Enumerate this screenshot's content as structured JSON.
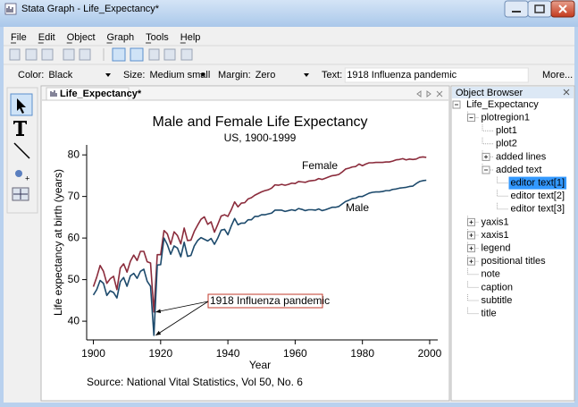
{
  "window": {
    "title": "Stata Graph - Life_Expectancy*"
  },
  "menu": [
    "File",
    "Edit",
    "Object",
    "Graph",
    "Tools",
    "Help"
  ],
  "properties": [
    {
      "label": "Color:",
      "value": "Black"
    },
    {
      "label": "Size:",
      "value": "Medium small"
    },
    {
      "label": "Margin:",
      "value": "Zero"
    },
    {
      "label": "Text:",
      "value": "1918 Influenza pandemic"
    }
  ],
  "more_button": "More...",
  "tab": {
    "title": "Life_Expectancy*"
  },
  "object_browser": {
    "title": "Object Browser",
    "items": [
      {
        "label": "Life_Expectancy",
        "level": 0,
        "expanded": true
      },
      {
        "label": "plotregion1",
        "level": 1,
        "expanded": true
      },
      {
        "label": "plot1",
        "level": 2
      },
      {
        "label": "plot2",
        "level": 2
      },
      {
        "label": "added lines",
        "level": 2,
        "expanded": false
      },
      {
        "label": "added text",
        "level": 2,
        "expanded": true
      },
      {
        "label": "editor text[1]",
        "level": 3,
        "selected": true
      },
      {
        "label": "editor text[2]",
        "level": 3
      },
      {
        "label": "editor text[3]",
        "level": 3
      },
      {
        "label": "yaxis1",
        "level": 1,
        "expanded": false
      },
      {
        "label": "xaxis1",
        "level": 1,
        "expanded": false
      },
      {
        "label": "legend",
        "level": 1,
        "expanded": false,
        "disabled": true
      },
      {
        "label": "positional titles",
        "level": 1,
        "expanded": false
      },
      {
        "label": "note",
        "level": 1
      },
      {
        "label": "caption",
        "level": 1
      },
      {
        "label": "subtitle",
        "level": 1
      },
      {
        "label": "title",
        "level": 1
      }
    ]
  },
  "chart_data": {
    "type": "line",
    "title": "Male and Female Life Expectancy",
    "subtitle": "US, 1900-1999",
    "x_label": "Year",
    "y_label": "Life expectancy at birth (years)",
    "note": "Source:  National Vital Statistics, Vol 50, No. 6",
    "x": [
      1900,
      1901,
      1902,
      1903,
      1904,
      1905,
      1906,
      1907,
      1908,
      1909,
      1910,
      1911,
      1912,
      1913,
      1914,
      1915,
      1916,
      1917,
      1918,
      1919,
      1920,
      1921,
      1922,
      1923,
      1924,
      1925,
      1926,
      1927,
      1928,
      1929,
      1930,
      1931,
      1932,
      1933,
      1934,
      1935,
      1936,
      1937,
      1938,
      1939,
      1940,
      1941,
      1942,
      1943,
      1944,
      1945,
      1946,
      1947,
      1948,
      1949,
      1950,
      1951,
      1952,
      1953,
      1954,
      1955,
      1956,
      1957,
      1958,
      1959,
      1960,
      1961,
      1962,
      1963,
      1964,
      1965,
      1966,
      1967,
      1968,
      1969,
      1970,
      1971,
      1972,
      1973,
      1974,
      1975,
      1976,
      1977,
      1978,
      1979,
      1980,
      1981,
      1982,
      1983,
      1984,
      1985,
      1986,
      1987,
      1988,
      1989,
      1990,
      1991,
      1992,
      1993,
      1994,
      1995,
      1996,
      1997,
      1998,
      1999
    ],
    "series": [
      {
        "name": "Female",
        "color": "#8b2c3c",
        "values": [
          48.3,
          50.6,
          53.4,
          52.0,
          49.1,
          50.2,
          50.8,
          47.6,
          52.8,
          53.8,
          51.8,
          54.4,
          55.9,
          54.6,
          56.8,
          56.8,
          54.3,
          54.0,
          42.2,
          56.0,
          56.0,
          61.8,
          61.0,
          58.5,
          61.5,
          60.6,
          58.6,
          62.4,
          59.4,
          59.5,
          61.6,
          63.1,
          64.5,
          65.1,
          63.3,
          63.9,
          61.4,
          63.3,
          65.3,
          65.6,
          65.2,
          66.8,
          68.7,
          67.5,
          68.4,
          68.5,
          69.4,
          69.7,
          70.3,
          70.7,
          71.1,
          71.4,
          71.6,
          72.0,
          72.8,
          72.7,
          72.9,
          72.7,
          72.9,
          73.2,
          73.1,
          73.6,
          73.5,
          73.4,
          73.7,
          73.8,
          73.9,
          74.3,
          74.1,
          74.4,
          74.7,
          75.0,
          75.1,
          75.3,
          75.9,
          76.6,
          76.8,
          77.1,
          77.2,
          77.8,
          77.4,
          77.8,
          78.1,
          78.1,
          78.2,
          78.2,
          78.2,
          78.3,
          78.3,
          78.5,
          78.8,
          78.9,
          79.1,
          78.8,
          79.0,
          78.9,
          79.0,
          79.4,
          79.5,
          79.4
        ]
      },
      {
        "name": "Male",
        "color": "#1d4a6c",
        "values": [
          46.3,
          47.6,
          49.8,
          49.1,
          46.2,
          47.3,
          46.9,
          45.6,
          49.5,
          50.5,
          48.4,
          50.9,
          51.5,
          50.3,
          52.0,
          52.5,
          49.6,
          48.4,
          36.6,
          53.5,
          53.6,
          60.0,
          58.4,
          56.1,
          58.1,
          57.6,
          55.5,
          59.0,
          55.6,
          55.8,
          58.1,
          59.4,
          60.1,
          59.7,
          59.3,
          59.9,
          58.5,
          60.0,
          61.9,
          62.1,
          60.8,
          62.9,
          64.7,
          63.2,
          63.6,
          63.6,
          64.4,
          64.4,
          65.2,
          65.2,
          65.6,
          65.6,
          65.8,
          66.0,
          66.7,
          66.7,
          66.7,
          66.4,
          66.6,
          66.8,
          66.6,
          67.1,
          66.9,
          66.6,
          66.8,
          66.8,
          66.7,
          67.0,
          66.6,
          66.8,
          67.1,
          67.4,
          67.4,
          67.6,
          68.2,
          68.8,
          69.1,
          69.5,
          69.6,
          70.0,
          70.0,
          70.4,
          70.8,
          71.0,
          71.1,
          71.1,
          71.2,
          71.4,
          71.4,
          71.7,
          71.8,
          72.0,
          72.1,
          72.2,
          72.4,
          72.5,
          73.1,
          73.6,
          73.8,
          73.9
        ]
      }
    ],
    "annotations": [
      "Female",
      "Male",
      "1918 Influenza pandemic"
    ],
    "xlim": [
      1898,
      2002.4
    ],
    "xticks": [
      1900,
      1920,
      1940,
      1960,
      1980,
      2000
    ],
    "ylim": [
      35.5,
      82.4
    ],
    "yticks": [
      40,
      50,
      60,
      70,
      80
    ],
    "grid": false
  }
}
